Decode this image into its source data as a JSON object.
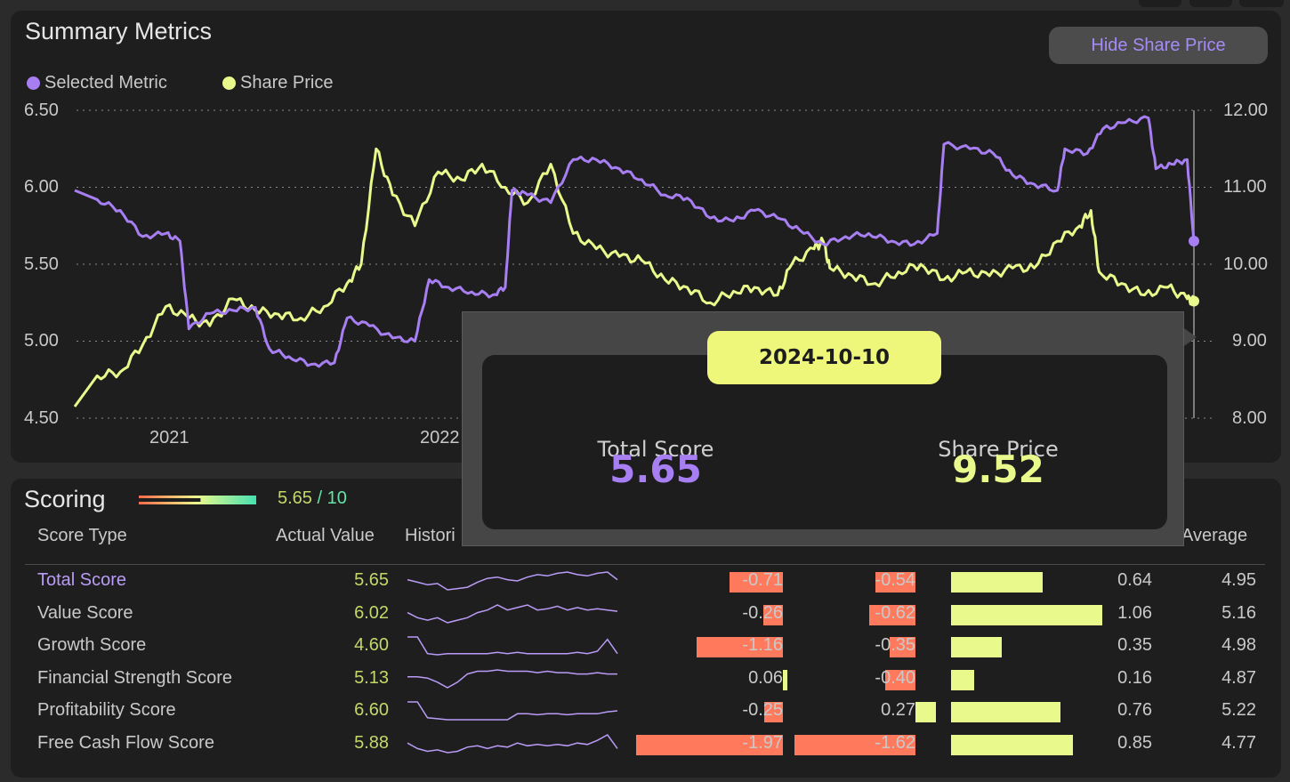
{
  "summary": {
    "title": "Summary Metrics",
    "legend": [
      {
        "label": "Selected Metric",
        "color": "#a77ff2"
      },
      {
        "label": "Share Price",
        "color": "#e9f98c"
      }
    ],
    "hide_button": "Hide Share Price"
  },
  "chart_data": {
    "type": "line",
    "x_ticks": [
      "2021",
      "2022"
    ],
    "y_left": {
      "ticks": [
        "6.50",
        "6.00",
        "5.50",
        "5.00",
        "4.50"
      ],
      "range": [
        4.5,
        6.5
      ]
    },
    "y_right": {
      "ticks": [
        "12.00",
        "11.00",
        "10.00",
        "9.00",
        "8.00"
      ],
      "range": [
        8.0,
        12.0
      ]
    },
    "grid": true,
    "x_range": [
      "2020-09-01",
      "2024-10-10"
    ],
    "series": [
      {
        "name": "Selected Metric",
        "axis": "left",
        "color": "#a77ff2",
        "points": [
          [
            "2020-09-01",
            5.98
          ],
          [
            "2020-10-01",
            5.92
          ],
          [
            "2020-11-01",
            5.85
          ],
          [
            "2020-12-01",
            5.68
          ],
          [
            "2021-01-01",
            5.7
          ],
          [
            "2021-01-20",
            5.65
          ],
          [
            "2021-02-01",
            5.08
          ],
          [
            "2021-03-01",
            5.18
          ],
          [
            "2021-04-01",
            5.2
          ],
          [
            "2021-05-01",
            5.22
          ],
          [
            "2021-05-20",
            4.95
          ],
          [
            "2021-06-15",
            4.9
          ],
          [
            "2021-07-15",
            4.85
          ],
          [
            "2021-08-15",
            4.86
          ],
          [
            "2021-09-01",
            5.15
          ],
          [
            "2021-10-01",
            5.1
          ],
          [
            "2021-11-01",
            5.02
          ],
          [
            "2021-12-01",
            5.0
          ],
          [
            "2021-12-20",
            5.4
          ],
          [
            "2022-01-15",
            5.35
          ],
          [
            "2022-02-15",
            5.32
          ],
          [
            "2022-03-15",
            5.3
          ],
          [
            "2022-04-01",
            5.35
          ],
          [
            "2022-04-10",
            5.98
          ],
          [
            "2022-05-01",
            5.95
          ],
          [
            "2022-06-01",
            5.9
          ],
          [
            "2022-07-01",
            6.18
          ],
          [
            "2022-08-01",
            6.18
          ],
          [
            "2022-09-01",
            6.12
          ],
          [
            "2022-10-01",
            6.05
          ],
          [
            "2022-11-01",
            5.95
          ],
          [
            "2022-12-01",
            5.93
          ],
          [
            "2023-01-01",
            5.8
          ],
          [
            "2023-02-01",
            5.78
          ],
          [
            "2023-03-01",
            5.85
          ],
          [
            "2023-04-01",
            5.8
          ],
          [
            "2023-05-01",
            5.72
          ],
          [
            "2023-06-01",
            5.63
          ],
          [
            "2023-07-01",
            5.68
          ],
          [
            "2023-08-01",
            5.7
          ],
          [
            "2023-09-01",
            5.65
          ],
          [
            "2023-10-01",
            5.63
          ],
          [
            "2023-11-01",
            5.7
          ],
          [
            "2023-11-10",
            6.28
          ],
          [
            "2023-12-15",
            6.25
          ],
          [
            "2024-01-15",
            6.22
          ],
          [
            "2024-02-10",
            6.08
          ],
          [
            "2024-03-10",
            6.02
          ],
          [
            "2024-04-10",
            5.98
          ],
          [
            "2024-04-20",
            6.25
          ],
          [
            "2024-05-20",
            6.22
          ],
          [
            "2024-06-10",
            6.38
          ],
          [
            "2024-07-10",
            6.42
          ],
          [
            "2024-08-10",
            6.45
          ],
          [
            "2024-08-20",
            6.12
          ],
          [
            "2024-09-10",
            6.15
          ],
          [
            "2024-10-01",
            6.18
          ],
          [
            "2024-10-10",
            5.65
          ]
        ]
      },
      {
        "name": "Share Price",
        "axis": "right",
        "color": "#e9f98c",
        "points": [
          [
            "2020-09-01",
            8.15
          ],
          [
            "2020-10-01",
            8.55
          ],
          [
            "2020-11-01",
            8.6
          ],
          [
            "2020-12-01",
            8.95
          ],
          [
            "2021-01-01",
            9.45
          ],
          [
            "2021-02-01",
            9.3
          ],
          [
            "2021-03-01",
            9.2
          ],
          [
            "2021-04-01",
            9.55
          ],
          [
            "2021-05-01",
            9.4
          ],
          [
            "2021-06-01",
            9.35
          ],
          [
            "2021-07-01",
            9.3
          ],
          [
            "2021-08-01",
            9.45
          ],
          [
            "2021-09-01",
            9.75
          ],
          [
            "2021-09-20",
            10.0
          ],
          [
            "2021-10-10",
            11.5
          ],
          [
            "2021-11-01",
            10.9
          ],
          [
            "2021-12-01",
            10.5
          ],
          [
            "2022-01-01",
            11.2
          ],
          [
            "2022-02-01",
            11.1
          ],
          [
            "2022-03-01",
            11.3
          ],
          [
            "2022-04-01",
            11.0
          ],
          [
            "2022-05-01",
            10.8
          ],
          [
            "2022-06-01",
            11.3
          ],
          [
            "2022-07-01",
            10.4
          ],
          [
            "2022-08-01",
            10.2
          ],
          [
            "2022-09-01",
            10.1
          ],
          [
            "2022-10-01",
            10.05
          ],
          [
            "2022-11-01",
            9.8
          ],
          [
            "2022-12-01",
            9.7
          ],
          [
            "2023-01-01",
            9.5
          ],
          [
            "2023-02-01",
            9.65
          ],
          [
            "2023-03-01",
            9.7
          ],
          [
            "2023-04-01",
            9.6
          ],
          [
            "2023-04-20",
            10.0
          ],
          [
            "2023-05-20",
            10.2
          ],
          [
            "2023-06-01",
            10.3
          ],
          [
            "2023-06-10",
            9.95
          ],
          [
            "2023-07-10",
            9.85
          ],
          [
            "2023-08-10",
            9.75
          ],
          [
            "2023-09-10",
            9.9
          ],
          [
            "2023-10-10",
            10.0
          ],
          [
            "2023-11-10",
            9.8
          ],
          [
            "2023-12-10",
            9.9
          ],
          [
            "2024-01-10",
            9.85
          ],
          [
            "2024-02-10",
            9.95
          ],
          [
            "2024-03-10",
            9.95
          ],
          [
            "2024-04-10",
            10.3
          ],
          [
            "2024-05-10",
            10.5
          ],
          [
            "2024-05-25",
            10.7
          ],
          [
            "2024-06-05",
            9.9
          ],
          [
            "2024-07-05",
            9.75
          ],
          [
            "2024-08-05",
            9.6
          ],
          [
            "2024-09-05",
            9.7
          ],
          [
            "2024-10-01",
            9.55
          ],
          [
            "2024-10-10",
            9.52
          ]
        ]
      }
    ]
  },
  "tooltip": {
    "date": "2024-10-10",
    "left_label": "Total Score",
    "left_value": "5.65",
    "right_label": "Share Price",
    "right_value": "9.52"
  },
  "scoring": {
    "title": "Scoring",
    "score": "5.65",
    "score_of": " / 10",
    "score_fraction": 0.565,
    "columns": {
      "type": "Score Type",
      "actual": "Actual Value",
      "historic": "Histori",
      "average": "Average"
    },
    "rows": [
      {
        "label": "Total Score",
        "value": "5.65",
        "c1": "-0.71",
        "c1v": -0.71,
        "c2": "-0.54",
        "c2v": -0.54,
        "c3": "0.64",
        "c3v": 0.64,
        "avg": "4.95",
        "spark": [
          5.9,
          5.8,
          5.7,
          5.75,
          5.5,
          5.55,
          5.6,
          5.8,
          5.95,
          6.0,
          5.9,
          5.85,
          6.0,
          6.1,
          6.05,
          6.15,
          6.2,
          6.1,
          6.05,
          6.15,
          6.2,
          5.9
        ]
      },
      {
        "label": "Value Score",
        "value": "6.02",
        "c1": "-0.26",
        "c1v": -0.26,
        "c2": "-0.62",
        "c2v": -0.62,
        "c3": "1.06",
        "c3v": 1.06,
        "avg": "5.16",
        "spark": [
          5.9,
          5.7,
          5.6,
          5.7,
          5.5,
          5.6,
          5.7,
          5.9,
          6.0,
          6.2,
          6.0,
          6.1,
          6.2,
          6.0,
          6.05,
          6.15,
          6.0,
          6.1,
          6.0,
          6.05,
          6.0,
          5.95
        ]
      },
      {
        "label": "Growth Score",
        "value": "4.60",
        "c1": "-1.16",
        "c1v": -1.16,
        "c2": "-0.35",
        "c2v": -0.35,
        "c3": "0.35",
        "c3v": 0.35,
        "avg": "4.98",
        "spark": [
          6.3,
          6.3,
          5.6,
          5.55,
          5.6,
          5.6,
          5.6,
          5.6,
          5.6,
          5.65,
          5.6,
          5.65,
          5.6,
          5.6,
          5.6,
          5.6,
          5.6,
          5.65,
          5.6,
          5.7,
          6.2,
          5.6
        ]
      },
      {
        "label": "Financial Strength Score",
        "value": "5.13",
        "c1": "0.06",
        "c1v": 0.06,
        "c2": "-0.40",
        "c2v": -0.4,
        "c3": "0.16",
        "c3v": 0.16,
        "avg": "4.87",
        "spark": [
          5.8,
          5.8,
          5.75,
          5.6,
          5.4,
          5.6,
          5.9,
          6.0,
          6.0,
          6.05,
          6.0,
          6.0,
          6.0,
          5.95,
          6.0,
          5.95,
          5.95,
          5.9,
          5.9,
          5.95,
          5.9,
          5.9
        ]
      },
      {
        "label": "Profitability Score",
        "value": "6.60",
        "c1": "-0.25",
        "c1v": -0.25,
        "c2": "0.27",
        "c2v": 0.27,
        "c3": "0.76",
        "c3v": 0.76,
        "avg": "5.22",
        "spark": [
          6.5,
          6.5,
          5.7,
          5.65,
          5.6,
          5.6,
          5.6,
          5.6,
          5.6,
          5.6,
          5.6,
          5.9,
          5.9,
          5.85,
          5.9,
          5.9,
          5.85,
          5.9,
          5.9,
          5.9,
          6.0,
          6.05
        ]
      },
      {
        "label": "Free Cash Flow Score",
        "value": "5.88",
        "c1": "-1.97",
        "c1v": -1.97,
        "c2": "-1.62",
        "c2v": -1.62,
        "c3": "0.85",
        "c3v": 0.85,
        "avg": "4.77",
        "spark": [
          5.9,
          5.7,
          5.6,
          5.65,
          5.55,
          5.6,
          5.75,
          5.8,
          5.7,
          5.8,
          5.75,
          5.9,
          5.8,
          5.85,
          5.8,
          5.85,
          5.8,
          5.9,
          5.85,
          6.0,
          6.2,
          5.7
        ]
      }
    ]
  },
  "colors": {
    "purple": "#a77ff2",
    "yellow": "#e9f98c",
    "red": "#ff7a5c",
    "value_green": "#c3d86a",
    "teal": "#66e3a6"
  }
}
